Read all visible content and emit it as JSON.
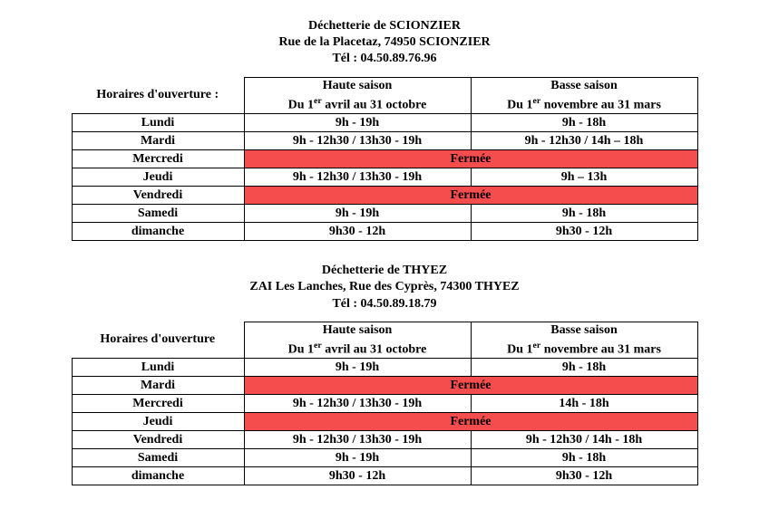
{
  "sections": [
    {
      "title": "Déchetterie  de SCIONZIER",
      "address": "Rue de la Placetaz, 74950 SCIONZIER",
      "phone": "Tél : 04.50.89.76.96",
      "hours_label": "Horaires d'ouverture :",
      "high_season_title": "Haute saison",
      "high_season_range_pre": "Du 1",
      "high_season_range_sup": "er",
      "high_season_range_post": " avril au 31 octobre",
      "low_season_title": "Basse saison",
      "low_season_range_pre": "Du 1",
      "low_season_range_sup": "er",
      "low_season_range_post": " novembre au 31 mars",
      "closed_label": "Fermée",
      "rows": [
        {
          "day": "Lundi",
          "high": "9h - 19h",
          "low": "9h - 18h",
          "closed": false
        },
        {
          "day": "Mardi",
          "high": "9h - 12h30 / 13h30 - 19h",
          "low": "9h - 12h30 / 14h – 18h",
          "closed": false
        },
        {
          "day": "Mercredi",
          "high": "",
          "low": "",
          "closed": true
        },
        {
          "day": "Jeudi",
          "high": "9h - 12h30 / 13h30 - 19h",
          "low": "9h – 13h",
          "closed": false
        },
        {
          "day": "Vendredi",
          "high": "",
          "low": "",
          "closed": true
        },
        {
          "day": "Samedi",
          "high": "9h - 19h",
          "low": "9h - 18h",
          "closed": false
        },
        {
          "day": "dimanche",
          "high": "9h30 - 12h",
          "low": "9h30 - 12h",
          "closed": false
        }
      ]
    },
    {
      "title": "Déchetterie  de THYEZ",
      "address": "ZAI Les Lanches, Rue des Cyprès, 74300 THYEZ",
      "phone": "Tél : 04.50.89.18.79",
      "hours_label": "Horaires d'ouverture",
      "high_season_title": "Haute saison",
      "high_season_range_pre": "Du 1",
      "high_season_range_sup": "er",
      "high_season_range_post": " avril au 31 octobre",
      "low_season_title": "Basse saison",
      "low_season_range_pre": "Du 1",
      "low_season_range_sup": "er",
      "low_season_range_post": " novembre au 31 mars",
      "closed_label": "Fermée",
      "rows": [
        {
          "day": "Lundi",
          "high": "9h - 19h",
          "low": "9h - 18h",
          "closed": false
        },
        {
          "day": "Mardi",
          "high": "",
          "low": "",
          "closed": true
        },
        {
          "day": "Mercredi",
          "high": "9h - 12h30 / 13h30 - 19h",
          "low": "14h - 18h",
          "closed": false
        },
        {
          "day": "Jeudi",
          "high": "",
          "low": "",
          "closed": true
        },
        {
          "day": "Vendredi",
          "high": "9h - 12h30 / 13h30 - 19h",
          "low": "9h - 12h30 / 14h - 18h",
          "closed": false
        },
        {
          "day": "Samedi",
          "high": "9h - 19h",
          "low": "9h - 18h",
          "closed": false
        },
        {
          "day": "dimanche",
          "high": "9h30 - 12h",
          "low": "9h30 - 12h",
          "closed": false
        }
      ]
    }
  ],
  "colors": {
    "closed_bg": "#f54d4d",
    "border": "#000000",
    "background": "#ffffff",
    "text": "#000000"
  }
}
